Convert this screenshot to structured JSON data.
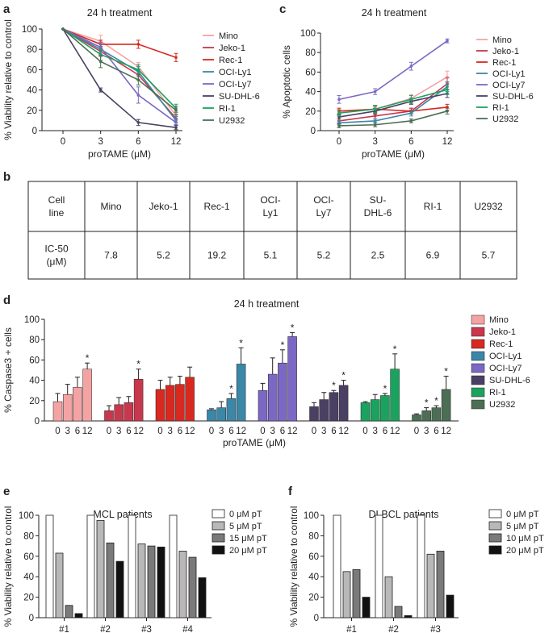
{
  "panels": {
    "a": "a",
    "b": "b",
    "c": "c",
    "d": "d",
    "e": "e",
    "f": "f"
  },
  "chart_data": [
    {
      "id": "a",
      "type": "line",
      "title": "24 h treatment",
      "xlabel": "proTAME (μM)",
      "ylabel": "% Viability relative to control",
      "x": [
        0,
        3,
        6,
        12
      ],
      "x_ticks": [
        "0",
        "3",
        "6",
        "12"
      ],
      "ylim": [
        0,
        100
      ],
      "y_ticks": [
        "0",
        "20",
        "40",
        "60",
        "80",
        "100"
      ],
      "legend_position": "right",
      "series": [
        {
          "name": "Mino",
          "color": "#f4a3a3",
          "values": [
            100,
            88,
            63,
            15
          ],
          "err": [
            0,
            6,
            4,
            4
          ]
        },
        {
          "name": "Jeko-1",
          "color": "#c9374c",
          "values": [
            100,
            78,
            55,
            12
          ],
          "err": [
            0,
            5,
            5,
            4
          ]
        },
        {
          "name": "Rec-1",
          "color": "#d7291f",
          "values": [
            100,
            85,
            85,
            72
          ],
          "err": [
            0,
            4,
            4,
            4
          ]
        },
        {
          "name": "OCI-Ly1",
          "color": "#3a87a8",
          "values": [
            100,
            80,
            58,
            10
          ],
          "err": [
            0,
            5,
            5,
            4
          ]
        },
        {
          "name": "OCI-Ly7",
          "color": "#7b68c4",
          "values": [
            100,
            82,
            35,
            8
          ],
          "err": [
            0,
            5,
            8,
            3
          ]
        },
        {
          "name": "SU-DHL-6",
          "color": "#4a4063",
          "values": [
            100,
            40,
            8,
            3
          ],
          "err": [
            0,
            2,
            3,
            2
          ]
        },
        {
          "name": "RI-1",
          "color": "#1aa35e",
          "values": [
            100,
            75,
            60,
            22
          ],
          "err": [
            0,
            6,
            5,
            4
          ]
        },
        {
          "name": "U2932",
          "color": "#4c6e55",
          "values": [
            100,
            68,
            50,
            20
          ],
          "err": [
            0,
            6,
            5,
            4
          ]
        }
      ]
    },
    {
      "id": "c",
      "type": "line",
      "title": "24 h treatment",
      "xlabel": "proTAME (μM)",
      "ylabel": "% Apoptotic cells",
      "x": [
        0,
        3,
        6,
        12
      ],
      "x_ticks": [
        "0",
        "3",
        "6",
        "12"
      ],
      "ylim": [
        0,
        100
      ],
      "y_ticks": [
        "0",
        "20",
        "40",
        "60",
        "80",
        "100"
      ],
      "legend_position": "right",
      "series": [
        {
          "name": "Mino",
          "color": "#f4a3a3",
          "values": [
            20,
            22,
            33,
            55
          ],
          "err": [
            2,
            3,
            4,
            6
          ]
        },
        {
          "name": "Jeko-1",
          "color": "#c9374c",
          "values": [
            10,
            15,
            20,
            48
          ],
          "err": [
            2,
            3,
            3,
            6
          ]
        },
        {
          "name": "Rec-1",
          "color": "#d7291f",
          "values": [
            20,
            22,
            20,
            24
          ],
          "err": [
            3,
            3,
            3,
            3
          ]
        },
        {
          "name": "OCI-Ly1",
          "color": "#3a87a8",
          "values": [
            8,
            10,
            18,
            45
          ],
          "err": [
            2,
            2,
            3,
            5
          ]
        },
        {
          "name": "OCI-Ly7",
          "color": "#7b68c4",
          "values": [
            32,
            40,
            66,
            92
          ],
          "err": [
            4,
            3,
            4,
            2
          ]
        },
        {
          "name": "SU-DHL-6",
          "color": "#4a4063",
          "values": [
            14,
            20,
            30,
            38
          ],
          "err": [
            2,
            3,
            3,
            4
          ]
        },
        {
          "name": "RI-1",
          "color": "#1aa35e",
          "values": [
            18,
            22,
            32,
            42
          ],
          "err": [
            3,
            4,
            4,
            5
          ]
        },
        {
          "name": "U2932",
          "color": "#4c6e55",
          "values": [
            5,
            6,
            10,
            20
          ],
          "err": [
            2,
            2,
            2,
            3
          ]
        }
      ]
    },
    {
      "id": "b",
      "type": "table",
      "header": [
        "Cell line",
        "Mino",
        "Jeko-1",
        "Rec-1",
        "OCI-Ly1",
        "OCI-Ly7",
        "SU-DHL-6",
        "RI-1",
        "U2932"
      ],
      "header_lines": [
        [
          "Cell",
          "line"
        ],
        [
          "Mino"
        ],
        [
          "Jeko-1"
        ],
        [
          "Rec-1"
        ],
        [
          "OCI-",
          "Ly1"
        ],
        [
          "OCI-",
          "Ly7"
        ],
        [
          "SU-",
          "DHL-6"
        ],
        [
          "RI-1"
        ],
        [
          "U2932"
        ]
      ],
      "row_label_lines": [
        "IC-50",
        "(μM)"
      ],
      "row": [
        "7.8",
        "5.2",
        "19.2",
        "5.1",
        "5.2",
        "2.5",
        "6.9",
        "5.7"
      ]
    },
    {
      "id": "d",
      "type": "bar",
      "title": "24 h treatment",
      "xlabel": "proTAME (μM)",
      "ylabel": "% Caspase3 + cells",
      "categories": [
        "0",
        "3",
        "6",
        "12"
      ],
      "ylim": [
        0,
        100
      ],
      "y_ticks": [
        "0",
        "20",
        "40",
        "60",
        "80",
        "100"
      ],
      "legend_position": "right",
      "significance_mark": "*",
      "series": [
        {
          "name": "Mino",
          "color": "#f4a3a3",
          "values": [
            19,
            26,
            33,
            51
          ],
          "err": [
            8,
            10,
            10,
            6
          ],
          "sig": [
            false,
            false,
            false,
            true
          ]
        },
        {
          "name": "Jeko-1",
          "color": "#c9374c",
          "values": [
            10,
            16,
            18,
            41
          ],
          "err": [
            5,
            7,
            6,
            10
          ],
          "sig": [
            false,
            false,
            false,
            true
          ]
        },
        {
          "name": "Rec-1",
          "color": "#d7291f",
          "values": [
            31,
            35,
            36,
            43
          ],
          "err": [
            9,
            8,
            8,
            10
          ],
          "sig": [
            false,
            false,
            false,
            false
          ]
        },
        {
          "name": "OCI-Ly1",
          "color": "#3a87a8",
          "values": [
            11,
            13,
            22,
            56
          ],
          "err": [
            1,
            6,
            5,
            16
          ],
          "sig": [
            false,
            false,
            true,
            true
          ]
        },
        {
          "name": "OCI-Ly7",
          "color": "#7b68c4",
          "values": [
            30,
            46,
            57,
            83
          ],
          "err": [
            7,
            16,
            13,
            4
          ],
          "sig": [
            false,
            false,
            true,
            true
          ]
        },
        {
          "name": "SU-DHL-6",
          "color": "#4a4063",
          "values": [
            14,
            21,
            28,
            35
          ],
          "err": [
            4,
            7,
            2,
            5
          ],
          "sig": [
            false,
            false,
            true,
            true
          ]
        },
        {
          "name": "RI-1",
          "color": "#1aa35e",
          "values": [
            18,
            21,
            25,
            51
          ],
          "err": [
            1,
            5,
            2,
            15
          ],
          "sig": [
            false,
            false,
            true,
            true
          ]
        },
        {
          "name": "U2932",
          "color": "#4c6e55",
          "values": [
            6,
            10,
            13,
            31
          ],
          "err": [
            1,
            3,
            2,
            13
          ],
          "sig": [
            false,
            true,
            true,
            true
          ]
        }
      ]
    },
    {
      "id": "e",
      "type": "bar",
      "title": "MCL patients",
      "xlabel": "",
      "ylabel": "% Viability relative to control",
      "categories": [
        "#1",
        "#2",
        "#3",
        "#4"
      ],
      "ylim": [
        0,
        100
      ],
      "y_ticks": [
        "0",
        "20",
        "40",
        "60",
        "80",
        "100"
      ],
      "legend_position": "top-right",
      "series": [
        {
          "name": "0 μM pT",
          "color": "#ffffff",
          "values": [
            100,
            100,
            100,
            100
          ]
        },
        {
          "name": "5 μM pT",
          "color": "#b8b8b8",
          "values": [
            63,
            95,
            72,
            65
          ]
        },
        {
          "name": "15 μM pT",
          "color": "#7a7a7a",
          "values": [
            12,
            73,
            70,
            59
          ]
        },
        {
          "name": "20 μM pT",
          "color": "#111111",
          "values": [
            4,
            55,
            69,
            39
          ]
        }
      ]
    },
    {
      "id": "f",
      "type": "bar",
      "title": "DLBCL patients",
      "xlabel": "",
      "ylabel": "% Viability relative to control",
      "categories": [
        "#1",
        "#2",
        "#3"
      ],
      "ylim": [
        0,
        100
      ],
      "y_ticks": [
        "0",
        "20",
        "40",
        "60",
        "80",
        "100"
      ],
      "legend_position": "top-right",
      "series": [
        {
          "name": "0 μM pT",
          "color": "#ffffff",
          "values": [
            100,
            100,
            100
          ]
        },
        {
          "name": "5 μM pT",
          "color": "#b8b8b8",
          "values": [
            45,
            40,
            62
          ]
        },
        {
          "name": "10 μM pT",
          "color": "#7a7a7a",
          "values": [
            47,
            11,
            65
          ]
        },
        {
          "name": "20 μM pT",
          "color": "#111111",
          "values": [
            20,
            2,
            22
          ]
        }
      ]
    }
  ]
}
